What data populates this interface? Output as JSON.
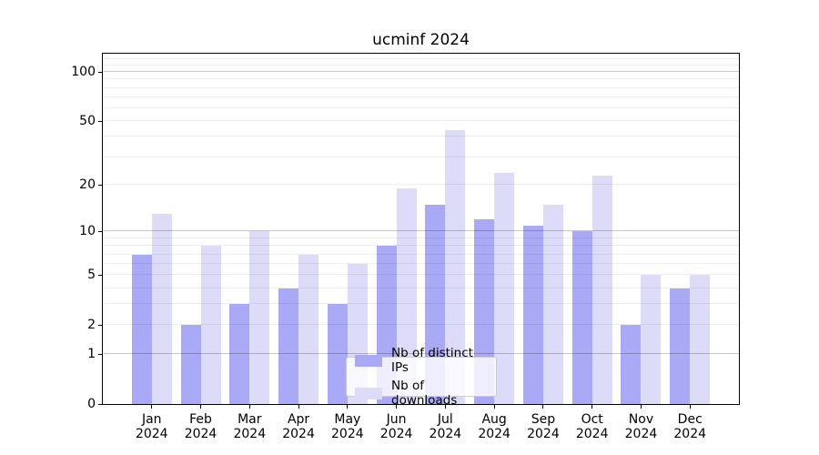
{
  "chart_data": {
    "type": "bar",
    "title": "ucminf 2024",
    "categories": [
      "Jan",
      "Feb",
      "Mar",
      "Apr",
      "May",
      "Jun",
      "Jul",
      "Aug",
      "Sep",
      "Oct",
      "Nov",
      "Dec"
    ],
    "category_year": "2024",
    "series": [
      {
        "name": "Nb of distinct IPs",
        "color": "#a9a9f5",
        "values": [
          7,
          2,
          3,
          4,
          3,
          8,
          15,
          12,
          11,
          10,
          2,
          4
        ]
      },
      {
        "name": "Nb of downloads",
        "color": "#dcdcf8",
        "values": [
          13,
          8,
          10,
          7,
          6,
          19,
          44,
          24,
          15,
          23,
          5,
          5
        ]
      }
    ],
    "yscale": "log10(1+x)",
    "ytick_labels": [
      "0",
      "1",
      "2",
      "5",
      "10",
      "20",
      "50",
      "100"
    ],
    "ytick_values": [
      0,
      1,
      2,
      5,
      10,
      20,
      50,
      100
    ],
    "ylim": [
      0,
      130
    ],
    "grid": "horizontal",
    "legend_position": "bottom-center",
    "colors": {
      "bar_distinct_ips": "#a9a9f5",
      "bar_downloads": "#dcdcf8",
      "major_grid": "#c8c8c8",
      "minor_grid": "#ededed",
      "axis": "#000000",
      "background": "#ffffff"
    }
  }
}
